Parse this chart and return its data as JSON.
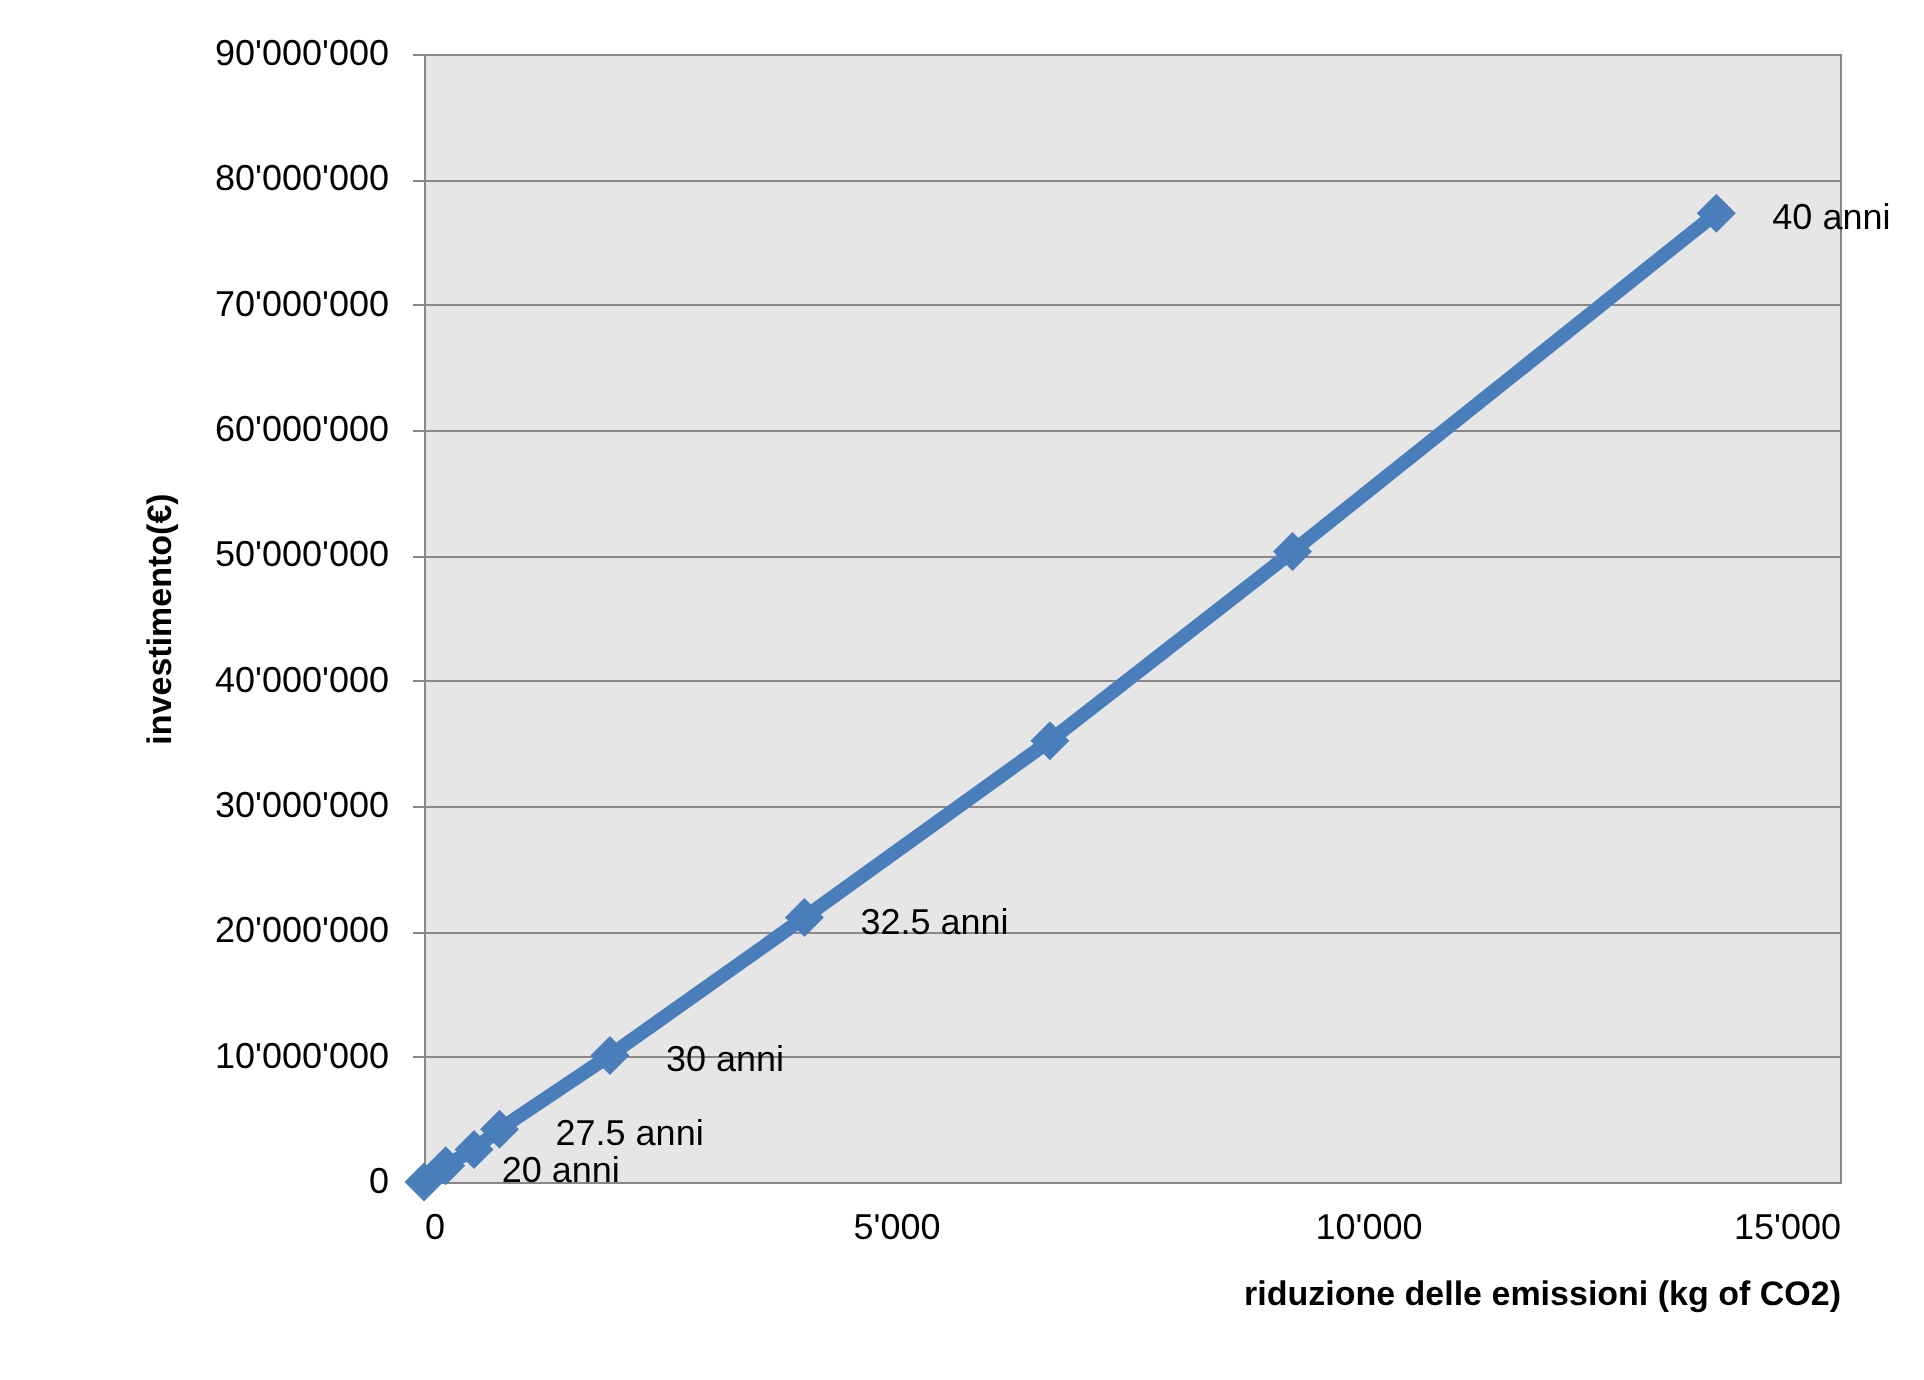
{
  "chart_data": {
    "type": "line",
    "xlabel": "riduzione delle emissioni (kg of CO2)",
    "ylabel": "investimento(€)",
    "x": [
      0,
      230,
      530,
      800,
      1970,
      4030,
      6630,
      9200,
      13690
    ],
    "series": [
      {
        "color": "#4a7ebb",
        "values": [
          0,
          1300000,
          2600000,
          4200000,
          10100000,
          21100000,
          35200000,
          50300000,
          77300000
        ]
      }
    ],
    "xlim": [
      0,
      15000
    ],
    "xticks": [
      0,
      {
        "value": 5000,
        "label": "5'000"
      },
      {
        "value": 10000,
        "label": "10'000"
      },
      {
        "value": 15000,
        "label": "15'000"
      }
    ],
    "ylim": [
      0,
      90000000
    ],
    "yticks": [
      0,
      {
        "value": 10000000,
        "label": "10'000'000"
      },
      {
        "value": 20000000,
        "label": "20'000'000"
      },
      {
        "value": 30000000,
        "label": "30'000'000"
      },
      {
        "value": 40000000,
        "label": "40'000'000"
      },
      {
        "value": 50000000,
        "label": "50'000'000"
      },
      {
        "value": 60000000,
        "label": "60'000'000"
      },
      {
        "value": 70000000,
        "label": "70'000'000"
      },
      {
        "value": 80000000,
        "label": "80'000'000"
      },
      {
        "value": 90000000,
        "label": "90'000'000"
      }
    ],
    "annotations": [
      {
        "text": "20 anni",
        "x": 230,
        "y": 1300000
      },
      {
        "text": "27.5 anni",
        "x": 800,
        "y": 4200000
      },
      {
        "text": "30 anni",
        "x": 1970,
        "y": 10100000
      },
      {
        "text": "32.5 anni",
        "x": 4030,
        "y": 21100000
      },
      {
        "text": "40 anni",
        "x": 13690,
        "y": 77300000
      }
    ],
    "grid": "y",
    "marker": "diamond",
    "line_style": "solid"
  }
}
